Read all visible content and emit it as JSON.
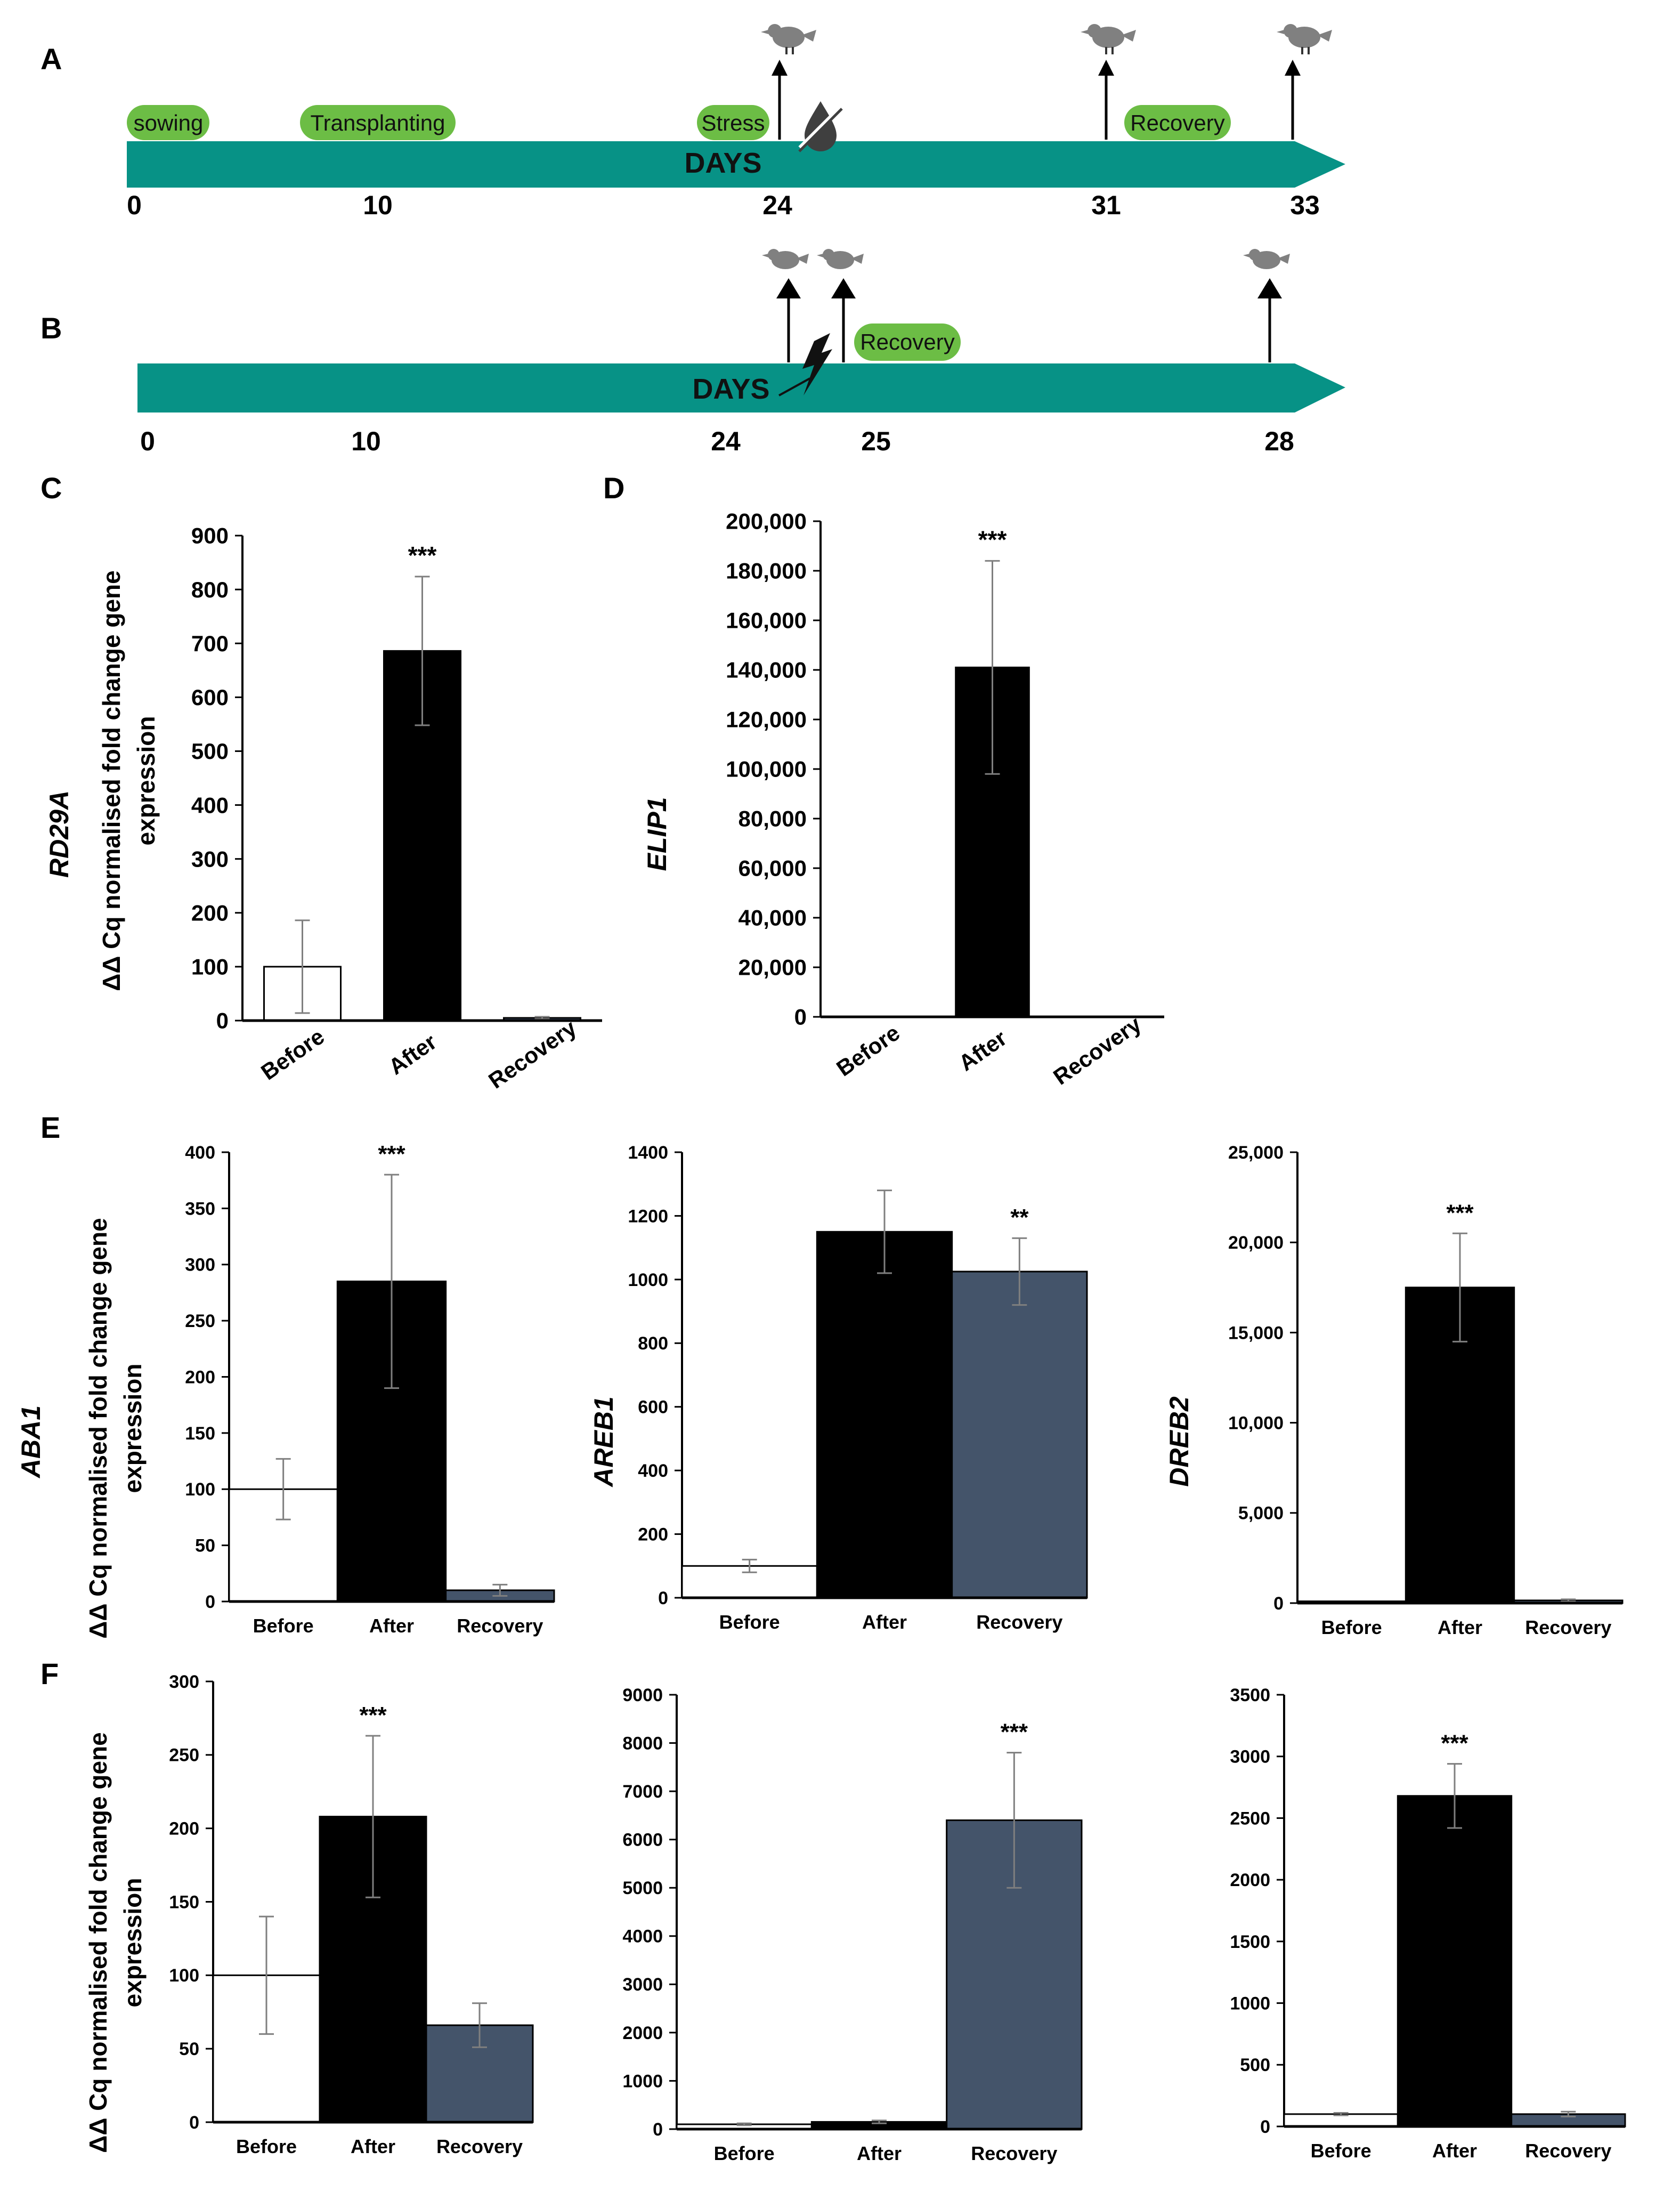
{
  "panel_letters": {
    "A": "A",
    "B": "B",
    "C": "C",
    "D": "D",
    "E": "E",
    "F": "F"
  },
  "timeline_a": {
    "axis_label": "DAYS",
    "ticks": [
      "0",
      "10",
      "24",
      "31",
      "33"
    ],
    "stages": [
      "sowing",
      "Transplanting",
      "Stress",
      "Recovery"
    ],
    "sampling_days": [
      24,
      31,
      33
    ],
    "bar_color": "#079286",
    "pill_color": "#6cbd45",
    "sampling_icon": "bird-icon",
    "stress_icon": "no-water-drop-icon"
  },
  "timeline_b": {
    "axis_label": "DAYS",
    "ticks": [
      "0",
      "10",
      "24",
      "25",
      "28"
    ],
    "stages": [
      "Recovery"
    ],
    "sampling_days": [
      24,
      25,
      28
    ],
    "bar_color": "#079286",
    "pill_color": "#6cbd45",
    "sampling_icon": "bird-icon",
    "stress_icon": "lightning-bolt-icon"
  },
  "y_axis_title": {
    "line1": "ΔΔ Cq normalised fold change gene",
    "line2": "expression"
  },
  "colors": {
    "before": "#ffffff",
    "after": "#000000",
    "recovery": "#44546a",
    "errorbar": "#7f7f7f"
  },
  "chart_data": [
    {
      "id": "C",
      "type": "bar",
      "gene": "RD29A",
      "categories": [
        "Before",
        "After",
        "Recovery"
      ],
      "values": [
        100,
        686,
        5
      ],
      "errors": [
        86,
        138,
        2
      ],
      "significance": [
        "",
        "***",
        ""
      ],
      "ylim": [
        0,
        900
      ],
      "yticks": [
        "0",
        "100",
        "200",
        "300",
        "400",
        "500",
        "600",
        "700",
        "800",
        "900"
      ],
      "ylabel": "ΔΔ Cq normalised fold change gene expression",
      "rotated_categories": true
    },
    {
      "id": "D",
      "type": "bar",
      "gene": "ELIP1",
      "categories": [
        "Before",
        "After",
        "Recovery"
      ],
      "values": [
        100,
        141000,
        50
      ],
      "errors": [
        0,
        43000,
        0
      ],
      "significance": [
        "",
        "***",
        ""
      ],
      "ylim": [
        0,
        200000
      ],
      "yticks": [
        "0",
        "20,000",
        "40,000",
        "60,000",
        "80,000",
        "100,000",
        "120,000",
        "140,000",
        "160,000",
        "180,000",
        "200,000"
      ],
      "ylabel": "",
      "rotated_categories": true
    },
    {
      "id": "E1",
      "type": "bar",
      "gene": "ABA1",
      "categories": [
        "Before",
        "After",
        "Recovery"
      ],
      "values": [
        100,
        285,
        10
      ],
      "errors": [
        27,
        95,
        5
      ],
      "significance": [
        "",
        "***",
        ""
      ],
      "ylim": [
        0,
        400
      ],
      "yticks": [
        "0",
        "50",
        "100",
        "150",
        "200",
        "250",
        "300",
        "350",
        "400"
      ],
      "ylabel": "ΔΔ Cq normalised fold change gene expression"
    },
    {
      "id": "E2",
      "type": "bar",
      "gene": "AREB1",
      "categories": [
        "Before",
        "After",
        "Recovery"
      ],
      "values": [
        100,
        1150,
        1025
      ],
      "errors": [
        20,
        130,
        105
      ],
      "significance": [
        "",
        "",
        "**"
      ],
      "ylim": [
        0,
        1400
      ],
      "yticks": [
        "0",
        "200",
        "400",
        "600",
        "800",
        "1000",
        "1200",
        "1400"
      ],
      "ylabel": ""
    },
    {
      "id": "E3",
      "type": "bar",
      "gene": "DREB2",
      "categories": [
        "Before",
        "After",
        "Recovery"
      ],
      "values": [
        100,
        17500,
        150
      ],
      "errors": [
        0,
        3000,
        60
      ],
      "significance": [
        "",
        "***",
        ""
      ],
      "ylim": [
        0,
        25000
      ],
      "yticks": [
        "0",
        "5,000",
        "10,000",
        "15,000",
        "20,000",
        "25,000"
      ],
      "ylabel": ""
    },
    {
      "id": "F1",
      "type": "bar",
      "gene": "",
      "categories": [
        "Before",
        "After",
        "Recovery"
      ],
      "values": [
        100,
        208,
        66
      ],
      "errors": [
        40,
        55,
        15
      ],
      "significance": [
        "",
        "***",
        ""
      ],
      "ylim": [
        0,
        300
      ],
      "yticks": [
        "0",
        "50",
        "100",
        "150",
        "200",
        "250",
        "300"
      ],
      "ylabel": "ΔΔ Cq normalised fold change gene expression"
    },
    {
      "id": "F2",
      "type": "bar",
      "gene": "",
      "categories": [
        "Before",
        "After",
        "Recovery"
      ],
      "values": [
        100,
        150,
        6400
      ],
      "errors": [
        20,
        30,
        1400
      ],
      "significance": [
        "",
        "",
        "***"
      ],
      "ylim": [
        0,
        9000
      ],
      "yticks": [
        "0",
        "1000",
        "2000",
        "3000",
        "4000",
        "5000",
        "6000",
        "7000",
        "8000",
        "9000"
      ],
      "ylabel": ""
    },
    {
      "id": "F3",
      "type": "bar",
      "gene": "",
      "categories": [
        "Before",
        "After",
        "Recovery"
      ],
      "values": [
        100,
        2680,
        100
      ],
      "errors": [
        10,
        260,
        20
      ],
      "significance": [
        "",
        "***",
        ""
      ],
      "ylim": [
        0,
        3500
      ],
      "yticks": [
        "0",
        "500",
        "1000",
        "1500",
        "2000",
        "2500",
        "3000",
        "3500"
      ],
      "ylabel": ""
    }
  ]
}
